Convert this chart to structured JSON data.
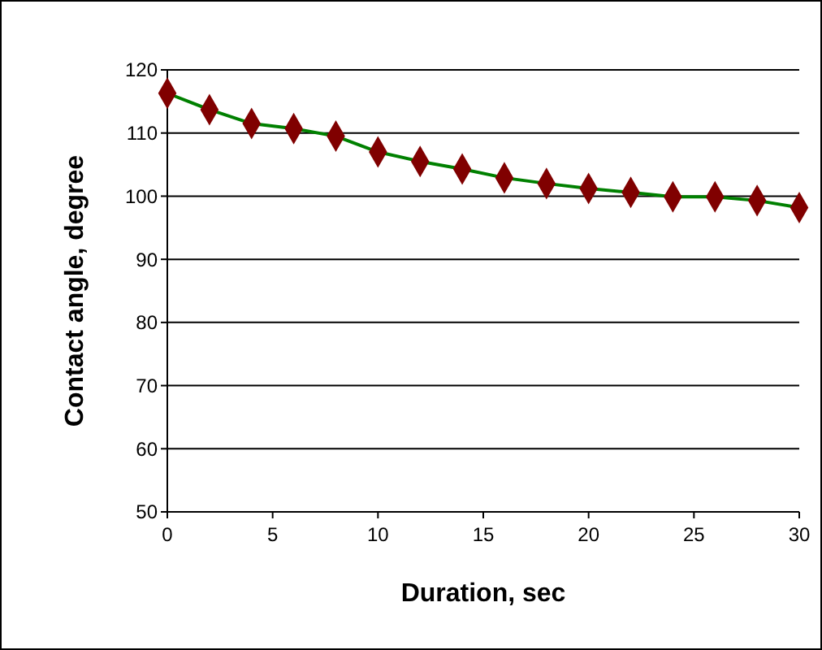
{
  "chart_data": {
    "type": "line",
    "xlabel": "Duration, sec",
    "ylabel": "Contact angle, degree",
    "x": [
      0,
      2,
      4,
      6,
      8,
      10,
      12,
      14,
      16,
      18,
      20,
      22,
      24,
      26,
      28,
      30
    ],
    "series": [
      {
        "color": "#008000",
        "colors": [
          "#800000",
          "#800000",
          "#800000",
          "#800000",
          "#800000",
          "#800000",
          "#800000",
          "#800000",
          "#800000",
          "#800000",
          "#800000",
          "#800000",
          "#800000",
          "#800000",
          "#800000",
          "#800000"
        ],
        "values": [
          116.3,
          113.7,
          111.5,
          110.7,
          109.5,
          107,
          105.5,
          104.3,
          102.9,
          102,
          101.2,
          100.6,
          99.9,
          99.9,
          99.3,
          98.2
        ]
      }
    ],
    "xlim": [
      0,
      30
    ],
    "xticks": [
      0,
      5,
      10,
      15,
      20,
      25,
      30
    ],
    "ylim": [
      50,
      120
    ],
    "yticks": [
      50,
      60,
      70,
      80,
      90,
      100,
      110,
      120
    ],
    "grid": "y",
    "marker": "diamond",
    "line_style": "solid"
  }
}
